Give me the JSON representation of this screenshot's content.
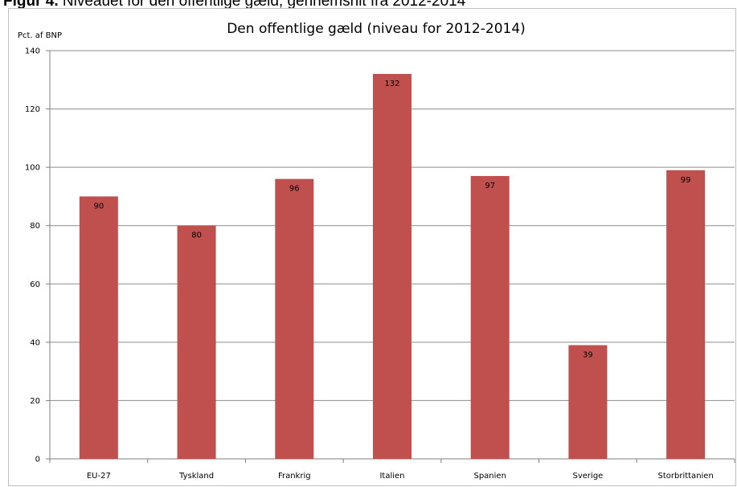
{
  "figure_caption": {
    "prefix": "Figur 4.",
    "text": "Niveauet for den offentlige gæld, gennemsnit fra 2012-2014"
  },
  "chart_data": {
    "type": "bar",
    "title": "Den offentlige gæld (niveau for 2012-2014)",
    "ylabel": "Pct. af BNP",
    "xlabel": "",
    "categories": [
      "EU-27",
      "Tyskland",
      "Frankrig",
      "Italien",
      "Spanien",
      "Sverige",
      "Storbrittanien"
    ],
    "series": [
      {
        "values": [
          90,
          80,
          96,
          132,
          97,
          39,
          99
        ]
      }
    ],
    "ylim": [
      0,
      140
    ],
    "yticks": [
      0,
      20,
      40,
      60,
      80,
      100,
      120,
      140
    ],
    "grid": true,
    "legend": "none",
    "data_labels": true,
    "colors": {
      "bar": "#c0504d",
      "grid": "#8c8c8c",
      "axis": "#7f7f7f"
    }
  }
}
